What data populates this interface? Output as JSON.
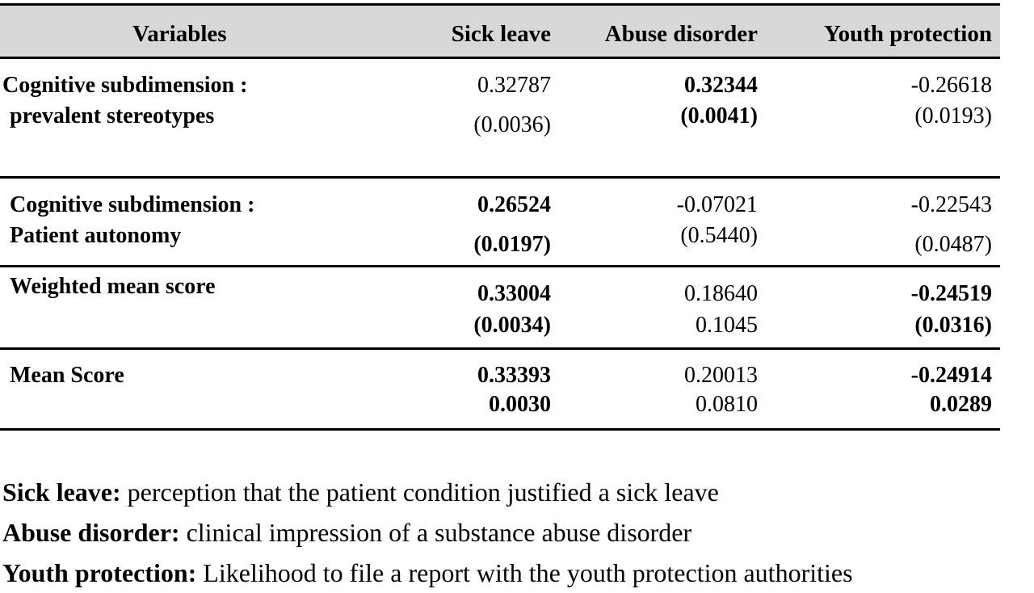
{
  "table": {
    "headers": {
      "variables": "Variables",
      "sick_leave": "Sick leave",
      "abuse_disorder": "Abuse disorder",
      "youth_protection": "Youth protection"
    },
    "rows": [
      {
        "label_line1": "Cognitive subdimension :",
        "label_line2": "prevalent stereotypes",
        "sick_leave": {
          "value": "0.32787",
          "p": "(0.0036)",
          "bold": false
        },
        "abuse_disorder": {
          "value": "0.32344",
          "p": "(0.0041)",
          "bold": true
        },
        "youth_protection": {
          "value": "-0.26618",
          "p": "(0.0193)",
          "bold": false
        }
      },
      {
        "label_line1": "Cognitive subdimension :",
        "label_line2": "Patient autonomy",
        "sick_leave": {
          "value": "0.26524",
          "p": "(0.0197)",
          "bold": true
        },
        "abuse_disorder": {
          "value": "-0.07021",
          "p": "(0.5440)",
          "bold": false
        },
        "youth_protection": {
          "value": "-0.22543",
          "p": "(0.0487)",
          "bold": false
        }
      },
      {
        "label_line1": "Weighted mean score",
        "sick_leave": {
          "value": "0.33004",
          "p": "(0.0034)",
          "bold": true
        },
        "abuse_disorder": {
          "value": "0.18640",
          "p": "0.1045",
          "bold": false
        },
        "youth_protection": {
          "value": "-0.24519",
          "p": "(0.0316)",
          "bold": true
        }
      },
      {
        "label_line1": "Mean Score",
        "sick_leave": {
          "value": "0.33393",
          "p": "0.0030",
          "bold": true
        },
        "abuse_disorder": {
          "value": "0.20013",
          "p": "0.0810",
          "bold": false
        },
        "youth_protection": {
          "value": "-0.24914",
          "p": "0.0289",
          "bold": true
        }
      }
    ]
  },
  "notes": [
    {
      "term": "Sick leave:",
      "text": " perception that the patient condition justified a sick leave"
    },
    {
      "term": "Abuse disorder:",
      "text": " clinical impression of a substance abuse disorder"
    },
    {
      "term": "Youth protection:",
      "text": " Likelihood to file a report with the youth protection authorities"
    }
  ],
  "colors": {
    "header_bg": "#d8d8d8",
    "rule": "#000000"
  }
}
